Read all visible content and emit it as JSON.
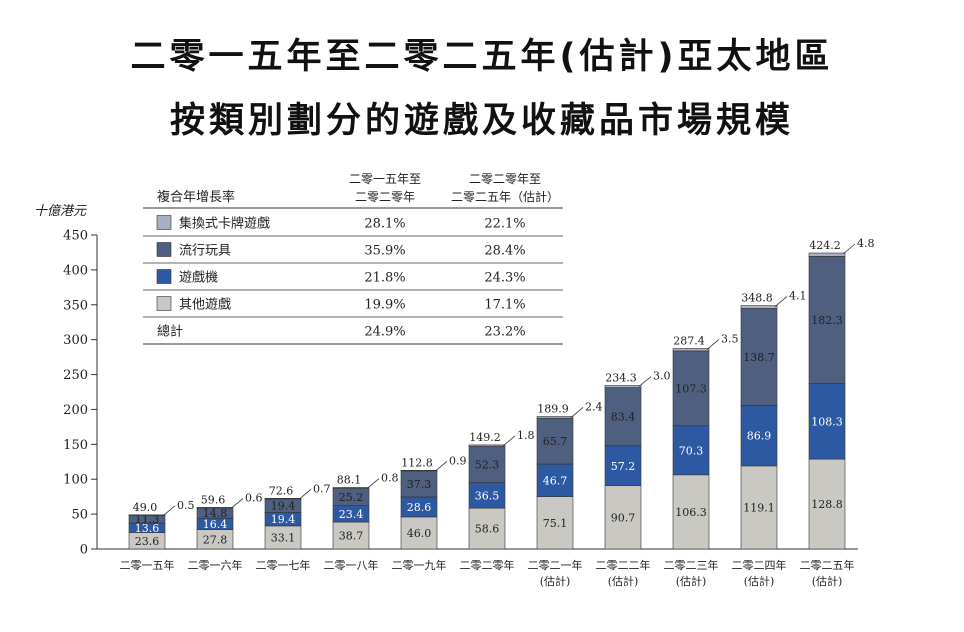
{
  "title_line1": "二零一五年至二零二五年(估計)亞太地區",
  "title_line2": "按類別劃分的遊戲及收藏品市場規模",
  "chart_data": {
    "type": "bar",
    "stacked": true,
    "yunit": "十億港元",
    "ylim": [
      0,
      450
    ],
    "yticks": [
      0,
      50,
      100,
      150,
      200,
      250,
      300,
      350,
      400,
      450
    ],
    "categories": [
      {
        "line1": "二零一五年",
        "line2": ""
      },
      {
        "line1": "二零一六年",
        "line2": ""
      },
      {
        "line1": "二零一七年",
        "line2": ""
      },
      {
        "line1": "二零一八年",
        "line2": ""
      },
      {
        "line1": "二零一九年",
        "line2": ""
      },
      {
        "line1": "二零二零年",
        "line2": ""
      },
      {
        "line1": "二零二一年",
        "line2": "(估計)"
      },
      {
        "line1": "二零二二年",
        "line2": "(估計)"
      },
      {
        "line1": "二零二三年",
        "line2": "(估計)"
      },
      {
        "line1": "二零二四年",
        "line2": "(估計)"
      },
      {
        "line1": "二零二五年",
        "line2": "(估計)"
      }
    ],
    "series": [
      {
        "name": "其他遊戲",
        "color": "#c9c8c2",
        "label_color": "#222222",
        "values": [
          23.6,
          27.8,
          33.1,
          38.7,
          46.0,
          58.6,
          75.1,
          90.7,
          106.3,
          119.1,
          128.8
        ]
      },
      {
        "name": "遊戲機",
        "color": "#2d59a3",
        "label_color": "#ffffff",
        "values": [
          13.6,
          16.4,
          19.4,
          23.4,
          28.6,
          36.5,
          46.7,
          57.2,
          70.3,
          86.9,
          108.3
        ]
      },
      {
        "name": "流行玩具",
        "color": "#4f5f7f",
        "label_color": "#222222",
        "values": [
          11.3,
          14.8,
          19.4,
          25.2,
          37.3,
          52.3,
          65.7,
          83.4,
          107.3,
          138.7,
          182.3
        ]
      },
      {
        "name": "集換式卡牌遊戲",
        "color": "#a8b0c4",
        "label_color": "#222222",
        "values": [
          0.5,
          0.6,
          0.7,
          0.8,
          0.9,
          1.8,
          2.4,
          3.0,
          3.5,
          4.1,
          4.8
        ]
      }
    ],
    "segment_labels": [
      [
        "23.6",
        "27.8",
        "33.1",
        "38.7",
        "46.0",
        "58.6",
        "75.1",
        "90.7",
        "106.3",
        "119.1",
        "128.8"
      ],
      [
        "13.6",
        "16.4",
        "19.4",
        "23.4",
        "28.6",
        "36.5",
        "46.7",
        "57.2",
        "70.3",
        "86.9",
        "108.3"
      ],
      [
        "11.3",
        "14.8",
        "19.4",
        "25.2",
        "37.3",
        "52.3",
        "65.7",
        "83.4",
        "107.3",
        "138.7",
        "182.3"
      ]
    ],
    "card_labels": [
      "0.5",
      "0.6",
      "0.7",
      "0.8",
      "0.9",
      "1.8",
      "2.4",
      "3.0",
      "3.5",
      "4.1",
      "4.8"
    ],
    "totals": [
      "49.0",
      "59.6",
      "72.6",
      "88.1",
      "112.8",
      "149.2",
      "189.9",
      "234.3",
      "287.4",
      "348.8",
      "424.2"
    ],
    "cagr_table": {
      "header_label": "複合年增長率",
      "col1_line1": "二零一五年至",
      "col1_line2": "二零二零年",
      "col2_line1": "二零二零年至",
      "col2_line2": "二零二五年（估計）",
      "rows": [
        {
          "name": "集換式卡牌遊戲",
          "color": "#a8b0c4",
          "v1": "28.1%",
          "v2": "22.1%"
        },
        {
          "name": "流行玩具",
          "color": "#4f5f7f",
          "v1": "35.9%",
          "v2": "28.4%"
        },
        {
          "name": "遊戲機",
          "color": "#2d59a3",
          "v1": "21.8%",
          "v2": "24.3%"
        },
        {
          "name": "其他遊戲",
          "color": "#c9c8c2",
          "v1": "19.9%",
          "v2": "17.1%"
        }
      ],
      "total_row": {
        "name": "總計",
        "v1": "24.9%",
        "v2": "23.2%"
      }
    }
  }
}
